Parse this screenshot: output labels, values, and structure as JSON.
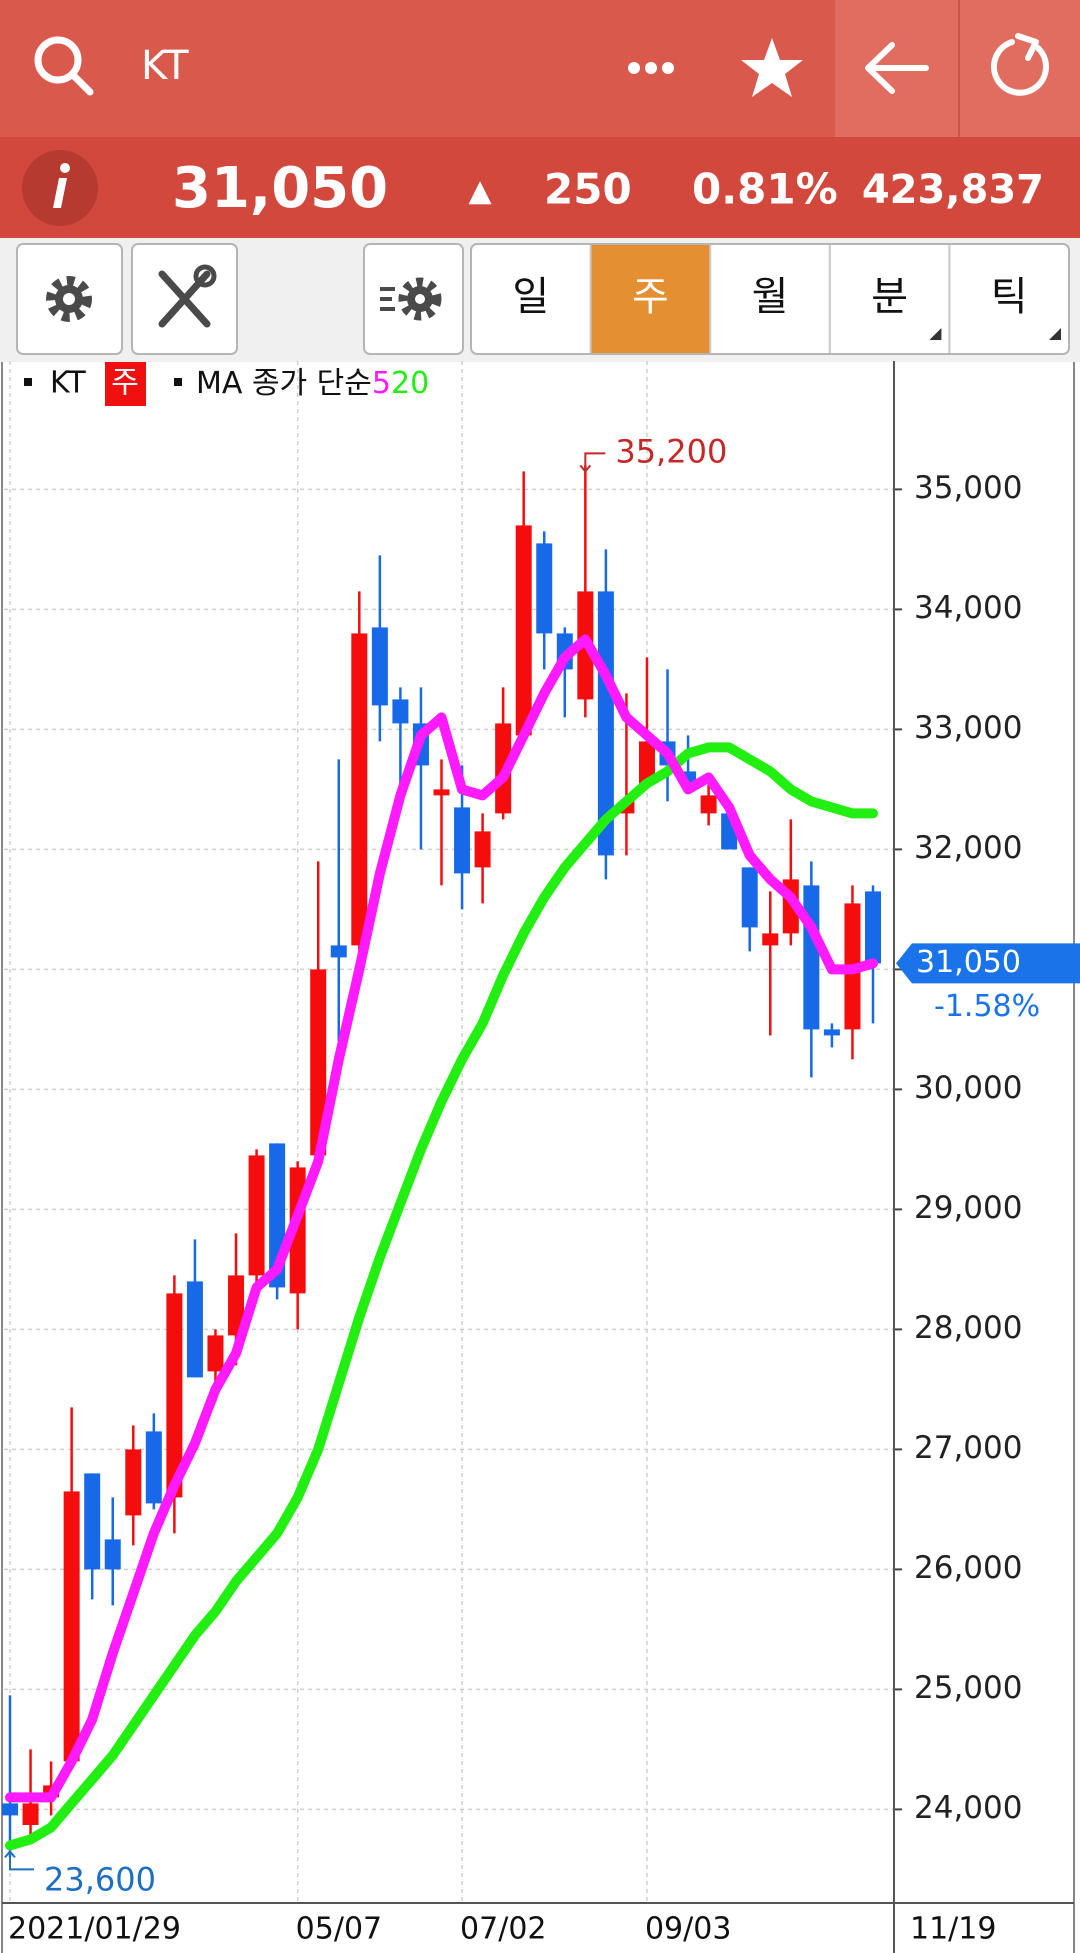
{
  "header": {
    "title": "KT"
  },
  "quote": {
    "price": "31,050",
    "arrow": "▲",
    "change": "250",
    "percent": "0.81%",
    "volume": "423,837"
  },
  "tabs": [
    {
      "label": "일",
      "active": false
    },
    {
      "label": "주",
      "active": true
    },
    {
      "label": "월",
      "active": false
    },
    {
      "label": "분",
      "active": false
    },
    {
      "label": "틱",
      "active": false
    }
  ],
  "chart_data": {
    "type": "candlestick",
    "legend": {
      "symbol": "KT",
      "period": "주",
      "indicator": "MA 종가 단순"
    },
    "categories": [
      "2021/01/29",
      null,
      null,
      null,
      null,
      null,
      null,
      null,
      null,
      null,
      null,
      null,
      null,
      null,
      "05/07",
      null,
      null,
      null,
      null,
      null,
      null,
      null,
      "07/02",
      null,
      null,
      null,
      null,
      null,
      null,
      null,
      null,
      "09/03",
      null,
      null,
      null,
      null,
      null,
      null,
      null,
      null,
      null,
      null,
      "11/19"
    ],
    "open": [
      24050,
      23870,
      24100,
      24400,
      26800,
      26250,
      26450,
      27150,
      26600,
      28400,
      27650,
      27950,
      28450,
      29550,
      28300,
      29450,
      31200,
      31200,
      33850,
      33250,
      33050,
      32450,
      32350,
      31850,
      32300,
      32950,
      34550,
      33800,
      33250,
      34150,
      32300,
      32550,
      32900,
      32650,
      32300,
      32300,
      31850,
      31200,
      31300,
      31700,
      30500,
      30500,
      31650
    ],
    "high": [
      24950,
      24500,
      24400,
      27350,
      26800,
      26600,
      27200,
      27300,
      28450,
      28750,
      28000,
      28800,
      29500,
      29550,
      29400,
      31900,
      32750,
      34150,
      34450,
      33350,
      33350,
      32750,
      32700,
      32300,
      33350,
      35150,
      34650,
      33850,
      35200,
      34500,
      33300,
      33600,
      33500,
      32950,
      32600,
      32350,
      31850,
      31650,
      32250,
      31900,
      30550,
      31700,
      31700
    ],
    "low": [
      23600,
      23750,
      23950,
      24350,
      25750,
      25700,
      26200,
      26500,
      26300,
      27600,
      27400,
      27700,
      28350,
      28250,
      28000,
      29400,
      30400,
      31100,
      32900,
      32500,
      32000,
      31700,
      31500,
      31550,
      32250,
      32900,
      33500,
      33100,
      33100,
      31750,
      31950,
      32600,
      32400,
      32500,
      32200,
      32000,
      31150,
      30450,
      31200,
      30100,
      30350,
      30250,
      30550
    ],
    "close": [
      23950,
      24050,
      24200,
      26650,
      26000,
      26000,
      27000,
      26550,
      28300,
      27600,
      27950,
      28450,
      29450,
      28350,
      29350,
      31000,
      31100,
      33800,
      33200,
      33050,
      32700,
      32500,
      31800,
      32150,
      33050,
      34700,
      33800,
      33500,
      34150,
      31950,
      32400,
      32900,
      32700,
      32550,
      32450,
      32000,
      31350,
      31300,
      31750,
      30500,
      30450,
      31550,
      31050
    ],
    "up_color": "#f50d0d",
    "down_color": "#1769e8",
    "series": [
      {
        "name": "5",
        "color": "#ff1aff",
        "values": [
          24100,
          24100,
          24100,
          24400,
          24750,
          25300,
          25800,
          26300,
          26700,
          27050,
          27500,
          27800,
          28350,
          28500,
          28950,
          29400,
          30250,
          31000,
          31800,
          32450,
          32950,
          33100,
          32500,
          32450,
          32600,
          32950,
          33300,
          33600,
          33750,
          33450,
          33100,
          32950,
          32800,
          32500,
          32600,
          32350,
          31950,
          31750,
          31600,
          31350,
          31000,
          31000,
          31050
        ]
      },
      {
        "name": "20",
        "color": "#22ee11",
        "values": [
          23700,
          23750,
          23850,
          24050,
          24250,
          24450,
          24700,
          24950,
          25200,
          25450,
          25650,
          25900,
          26100,
          26300,
          26600,
          27000,
          27550,
          28100,
          28600,
          29050,
          29500,
          29900,
          30250,
          30550,
          30950,
          31300,
          31600,
          31850,
          32050,
          32250,
          32400,
          32550,
          32650,
          32800,
          32850,
          32850,
          32750,
          32650,
          32500,
          32400,
          32350,
          32300,
          32300
        ]
      }
    ],
    "ylim": [
      23220,
      36070
    ],
    "yticks": [
      {
        "value": 24000,
        "label": "24,000"
      },
      {
        "value": 25000,
        "label": "25,000"
      },
      {
        "value": 26000,
        "label": "26,000"
      },
      {
        "value": 27000,
        "label": "27,000"
      },
      {
        "value": 28000,
        "label": "28,000"
      },
      {
        "value": 29000,
        "label": "29,000"
      },
      {
        "value": 30000,
        "label": "30,000"
      },
      {
        "value": 31000,
        "label": "31,000"
      },
      {
        "value": 32000,
        "label": "32,000"
      },
      {
        "value": 33000,
        "label": "33,000"
      },
      {
        "value": 34000,
        "label": "34,000"
      },
      {
        "value": 35000,
        "label": "35,000"
      }
    ],
    "grid": true,
    "max_label": "35,200",
    "min_label": "23,600",
    "last_label": "31,050",
    "last_change": "-1.58%"
  }
}
